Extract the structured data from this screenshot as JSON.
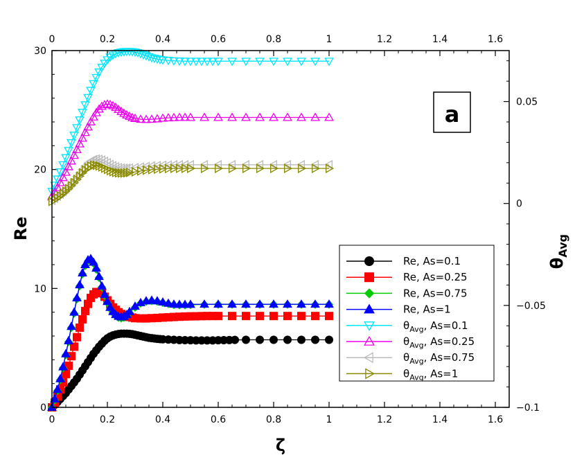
{
  "chart_data": {
    "type": "line",
    "panel_label": "a",
    "xlabel": "ζ",
    "ylabel": "Re",
    "y2label_main": "θ",
    "y2label_sub": "Avg",
    "xlim": [
      0,
      1.65
    ],
    "ylim": [
      0,
      30
    ],
    "y2lim": [
      -0.1,
      0.075
    ],
    "x_ticks": [
      0,
      0.2,
      0.4,
      0.6,
      0.8,
      1,
      1.2,
      1.4,
      1.6
    ],
    "x_tick_labels": [
      "0",
      "0.2",
      "0.4",
      "0.6",
      "0.8",
      "1",
      "1.2",
      "1.4",
      "1.6"
    ],
    "y_ticks": [
      0,
      10,
      20,
      30
    ],
    "y_tick_labels": [
      "0",
      "10",
      "20",
      "30"
    ],
    "y2_ticks": [
      -0.1,
      -0.05,
      0,
      0.05
    ],
    "y2_tick_labels": [
      "−0.1",
      "−0.05",
      "0",
      "0.05"
    ],
    "legend_position": "lower-right",
    "series": [
      {
        "name": "Re, As=0.1",
        "axis": "left",
        "color": "#000000",
        "marker": "circle-filled",
        "x": [
          0,
          0.01,
          0.02,
          0.03,
          0.04,
          0.05,
          0.06,
          0.07,
          0.08,
          0.09,
          0.1,
          0.11,
          0.12,
          0.13,
          0.14,
          0.15,
          0.16,
          0.17,
          0.18,
          0.19,
          0.2,
          0.21,
          0.22,
          0.23,
          0.24,
          0.25,
          0.26,
          0.27,
          0.28,
          0.29,
          0.3,
          0.31,
          0.32,
          0.33,
          0.34,
          0.35,
          0.36,
          0.37,
          0.38,
          0.39,
          0.4,
          0.42,
          0.44,
          0.46,
          0.48,
          0.5,
          0.52,
          0.54,
          0.56,
          0.58,
          0.6,
          0.62,
          0.64,
          0.66,
          0.7,
          0.75,
          0.8,
          0.85,
          0.9,
          0.95,
          1
        ],
        "y": [
          0,
          0.2,
          0.45,
          0.7,
          0.95,
          1.2,
          1.5,
          1.8,
          2.1,
          2.4,
          2.75,
          3.1,
          3.45,
          3.8,
          4.15,
          4.5,
          4.8,
          5.1,
          5.35,
          5.6,
          5.8,
          5.95,
          6.05,
          6.12,
          6.17,
          6.2,
          6.2,
          6.2,
          6.18,
          6.15,
          6.1,
          6.05,
          6.0,
          5.95,
          5.9,
          5.85,
          5.82,
          5.79,
          5.76,
          5.74,
          5.72,
          5.7,
          5.68,
          5.66,
          5.65,
          5.64,
          5.63,
          5.63,
          5.63,
          5.63,
          5.64,
          5.65,
          5.66,
          5.67,
          5.68,
          5.68,
          5.68,
          5.68,
          5.68,
          5.68,
          5.68
        ]
      },
      {
        "name": "Re, As=0.25",
        "axis": "left",
        "color": "#ff0000",
        "marker": "square-filled",
        "x": [
          0,
          0.01,
          0.02,
          0.03,
          0.04,
          0.05,
          0.06,
          0.07,
          0.08,
          0.09,
          0.1,
          0.11,
          0.12,
          0.13,
          0.14,
          0.15,
          0.16,
          0.17,
          0.18,
          0.19,
          0.2,
          0.21,
          0.22,
          0.23,
          0.24,
          0.25,
          0.26,
          0.27,
          0.28,
          0.29,
          0.3,
          0.32,
          0.34,
          0.36,
          0.38,
          0.4,
          0.42,
          0.44,
          0.46,
          0.48,
          0.5,
          0.52,
          0.54,
          0.56,
          0.58,
          0.6,
          0.65,
          0.7,
          0.75,
          0.8,
          0.85,
          0.9,
          0.95,
          1
        ],
        "y": [
          0,
          0.4,
          0.9,
          1.5,
          2.1,
          2.8,
          3.5,
          4.3,
          5.1,
          5.9,
          6.7,
          7.4,
          8.1,
          8.7,
          9.2,
          9.5,
          9.7,
          9.7,
          9.6,
          9.3,
          9.0,
          8.7,
          8.4,
          8.2,
          8.0,
          7.85,
          7.75,
          7.65,
          7.6,
          7.55,
          7.5,
          7.48,
          7.48,
          7.5,
          7.52,
          7.55,
          7.57,
          7.6,
          7.62,
          7.64,
          7.65,
          7.66,
          7.67,
          7.68,
          7.68,
          7.68,
          7.68,
          7.68,
          7.68,
          7.68,
          7.68,
          7.68,
          7.68,
          7.68
        ]
      },
      {
        "name": "Re, As=0.75",
        "axis": "left",
        "color": "#00cc00",
        "marker": "diamond-filled",
        "x": [
          0,
          0.01,
          0.02,
          0.03,
          0.04,
          0.05,
          0.06,
          0.07,
          0.08,
          0.09,
          0.1,
          0.11,
          0.12,
          0.13,
          0.14,
          0.15,
          0.16,
          0.17,
          0.18,
          0.19,
          0.2,
          0.21,
          0.22,
          0.23,
          0.24,
          0.25,
          0.26,
          0.27,
          0.28,
          0.3,
          0.32,
          0.34,
          0.36,
          0.38,
          0.4,
          0.42,
          0.44,
          0.46,
          0.48,
          0.5,
          0.55,
          0.6,
          0.65,
          0.7,
          0.75,
          0.8,
          0.85,
          0.9,
          0.95,
          1
        ],
        "y": [
          0,
          0.6,
          1.4,
          2.3,
          3.3,
          4.4,
          5.5,
          6.7,
          7.9,
          9.1,
          10.2,
          11.2,
          11.9,
          12.3,
          12.4,
          12.1,
          11.6,
          10.9,
          10.1,
          9.4,
          8.8,
          8.3,
          7.95,
          7.7,
          7.55,
          7.5,
          7.55,
          7.7,
          7.95,
          8.4,
          8.75,
          8.9,
          8.95,
          8.9,
          8.8,
          8.7,
          8.62,
          8.6,
          8.6,
          8.62,
          8.65,
          8.65,
          8.65,
          8.65,
          8.65,
          8.65,
          8.65,
          8.65,
          8.65,
          8.65
        ]
      },
      {
        "name": "Re, As=1",
        "axis": "left",
        "color": "#0000ff",
        "marker": "triangle-up-filled",
        "x": [
          0,
          0.01,
          0.02,
          0.03,
          0.04,
          0.05,
          0.06,
          0.07,
          0.08,
          0.09,
          0.1,
          0.11,
          0.12,
          0.13,
          0.14,
          0.15,
          0.16,
          0.17,
          0.18,
          0.19,
          0.2,
          0.21,
          0.22,
          0.23,
          0.24,
          0.25,
          0.26,
          0.27,
          0.28,
          0.3,
          0.32,
          0.34,
          0.36,
          0.38,
          0.4,
          0.42,
          0.44,
          0.46,
          0.48,
          0.5,
          0.55,
          0.6,
          0.65,
          0.7,
          0.75,
          0.8,
          0.85,
          0.9,
          0.95,
          1
        ],
        "y": [
          0,
          0.7,
          1.5,
          2.4,
          3.4,
          4.5,
          5.6,
          6.8,
          8.0,
          9.2,
          10.3,
          11.3,
          12.0,
          12.4,
          12.5,
          12.2,
          11.7,
          11.0,
          10.2,
          9.5,
          8.9,
          8.4,
          8.05,
          7.8,
          7.65,
          7.6,
          7.65,
          7.8,
          8.05,
          8.5,
          8.8,
          8.95,
          9.0,
          8.95,
          8.85,
          8.75,
          8.67,
          8.65,
          8.65,
          8.66,
          8.67,
          8.67,
          8.67,
          8.67,
          8.67,
          8.67,
          8.67,
          8.67,
          8.67,
          8.67
        ]
      },
      {
        "name": "θAvg, As=0.1",
        "label_main": "θ",
        "label_sub": "Avg",
        "label_rest": ", As=0.1",
        "axis": "right",
        "color": "#00e5ff",
        "marker": "triangle-down-open",
        "x": [
          0,
          0.01,
          0.02,
          0.03,
          0.04,
          0.05,
          0.06,
          0.07,
          0.08,
          0.09,
          0.1,
          0.11,
          0.12,
          0.13,
          0.14,
          0.15,
          0.16,
          0.17,
          0.18,
          0.19,
          0.2,
          0.21,
          0.22,
          0.23,
          0.24,
          0.25,
          0.26,
          0.27,
          0.28,
          0.29,
          0.3,
          0.31,
          0.32,
          0.33,
          0.34,
          0.35,
          0.36,
          0.37,
          0.38,
          0.39,
          0.4,
          0.42,
          0.44,
          0.46,
          0.48,
          0.5,
          0.52,
          0.54,
          0.56,
          0.58,
          0.6,
          0.65,
          0.7,
          0.75,
          0.8,
          0.85,
          0.9,
          0.95,
          1
        ],
        "y": [
          0.006,
          0.009,
          0.012,
          0.0155,
          0.019,
          0.0225,
          0.026,
          0.0298,
          0.0335,
          0.0372,
          0.041,
          0.0447,
          0.0484,
          0.052,
          0.0555,
          0.0588,
          0.0618,
          0.0645,
          0.0668,
          0.0688,
          0.0705,
          0.0718,
          0.0728,
          0.0735,
          0.074,
          0.0743,
          0.0745,
          0.0746,
          0.0746,
          0.0745,
          0.0743,
          0.074,
          0.0735,
          0.073,
          0.0725,
          0.072,
          0.0715,
          0.0712,
          0.0709,
          0.0706,
          0.0704,
          0.0702,
          0.07,
          0.0699,
          0.0698,
          0.0698,
          0.0698,
          0.0698,
          0.0698,
          0.0698,
          0.0698,
          0.0698,
          0.0698,
          0.0698,
          0.0698,
          0.0698,
          0.0698,
          0.0698,
          0.0698
        ]
      },
      {
        "name": "θAvg, As=0.25",
        "label_main": "θ",
        "label_sub": "Avg",
        "label_rest": ", As=0.25",
        "axis": "right",
        "color": "#ee00ee",
        "marker": "triangle-up-open",
        "x": [
          0,
          0.01,
          0.02,
          0.03,
          0.04,
          0.05,
          0.06,
          0.07,
          0.08,
          0.09,
          0.1,
          0.11,
          0.12,
          0.13,
          0.14,
          0.15,
          0.16,
          0.17,
          0.18,
          0.19,
          0.2,
          0.21,
          0.22,
          0.23,
          0.24,
          0.25,
          0.26,
          0.27,
          0.28,
          0.29,
          0.3,
          0.32,
          0.34,
          0.36,
          0.38,
          0.4,
          0.42,
          0.44,
          0.46,
          0.48,
          0.5,
          0.55,
          0.6,
          0.65,
          0.7,
          0.75,
          0.8,
          0.85,
          0.9,
          0.95,
          1
        ],
        "y": [
          0.0035,
          0.0055,
          0.0078,
          0.0102,
          0.0127,
          0.0153,
          0.018,
          0.0208,
          0.0236,
          0.0264,
          0.0292,
          0.032,
          0.0348,
          0.0375,
          0.04,
          0.0424,
          0.0445,
          0.0463,
          0.0476,
          0.0484,
          0.0487,
          0.0485,
          0.0479,
          0.0471,
          0.0461,
          0.0451,
          0.0442,
          0.0434,
          0.0427,
          0.0421,
          0.0417,
          0.0413,
          0.0412,
          0.0413,
          0.0415,
          0.0418,
          0.042,
          0.0421,
          0.0422,
          0.0422,
          0.0422,
          0.0422,
          0.0422,
          0.0422,
          0.0422,
          0.0422,
          0.0422,
          0.0422,
          0.0422,
          0.0422,
          0.0422
        ]
      },
      {
        "name": "θAvg, As=0.75",
        "label_main": "θ",
        "label_sub": "Avg",
        "label_rest": ", As=0.75",
        "axis": "right",
        "color": "#bbbbbb",
        "marker": "triangle-left-open",
        "x": [
          0,
          0.01,
          0.02,
          0.03,
          0.04,
          0.05,
          0.06,
          0.07,
          0.08,
          0.09,
          0.1,
          0.11,
          0.12,
          0.13,
          0.14,
          0.15,
          0.16,
          0.17,
          0.18,
          0.19,
          0.2,
          0.21,
          0.22,
          0.23,
          0.24,
          0.25,
          0.26,
          0.27,
          0.28,
          0.3,
          0.32,
          0.34,
          0.36,
          0.38,
          0.4,
          0.42,
          0.44,
          0.46,
          0.48,
          0.5,
          0.55,
          0.6,
          0.65,
          0.7,
          0.75,
          0.8,
          0.85,
          0.9,
          0.95,
          1
        ],
        "y": [
          0.0015,
          0.0025,
          0.0035,
          0.0046,
          0.0058,
          0.0071,
          0.0085,
          0.01,
          0.0116,
          0.0133,
          0.015,
          0.0167,
          0.0183,
          0.0197,
          0.0208,
          0.0215,
          0.0218,
          0.0217,
          0.0213,
          0.0207,
          0.02,
          0.0192,
          0.0185,
          0.018,
          0.0176,
          0.0174,
          0.0173,
          0.0173,
          0.0174,
          0.0176,
          0.0179,
          0.0182,
          0.0184,
          0.0186,
          0.0188,
          0.0189,
          0.019,
          0.019,
          0.019,
          0.019,
          0.019,
          0.019,
          0.019,
          0.019,
          0.019,
          0.019,
          0.019,
          0.019,
          0.019,
          0.019
        ]
      },
      {
        "name": "θAvg, As=1",
        "label_main": "θ",
        "label_sub": "Avg",
        "label_rest": ", As=1",
        "axis": "right",
        "color": "#888800",
        "marker": "triangle-right-open",
        "x": [
          0,
          0.01,
          0.02,
          0.03,
          0.04,
          0.05,
          0.06,
          0.07,
          0.08,
          0.09,
          0.1,
          0.11,
          0.12,
          0.13,
          0.14,
          0.15,
          0.16,
          0.17,
          0.18,
          0.19,
          0.2,
          0.21,
          0.22,
          0.23,
          0.24,
          0.25,
          0.26,
          0.27,
          0.28,
          0.3,
          0.32,
          0.34,
          0.36,
          0.38,
          0.4,
          0.42,
          0.44,
          0.46,
          0.48,
          0.5,
          0.55,
          0.6,
          0.65,
          0.7,
          0.75,
          0.8,
          0.85,
          0.9,
          0.95,
          1
        ],
        "y": [
          0.001,
          0.0018,
          0.0027,
          0.0037,
          0.0048,
          0.006,
          0.0073,
          0.0087,
          0.0102,
          0.0118,
          0.0134,
          0.015,
          0.0164,
          0.0175,
          0.0183,
          0.0187,
          0.0187,
          0.0184,
          0.0179,
          0.0173,
          0.0167,
          0.0161,
          0.0156,
          0.0152,
          0.015,
          0.0149,
          0.0149,
          0.015,
          0.0152,
          0.0155,
          0.0159,
          0.0163,
          0.0166,
          0.0168,
          0.017,
          0.0171,
          0.0172,
          0.0172,
          0.0172,
          0.0172,
          0.0172,
          0.0172,
          0.0172,
          0.0172,
          0.0172,
          0.0172,
          0.0172,
          0.0172,
          0.0172,
          0.0172
        ]
      }
    ]
  }
}
